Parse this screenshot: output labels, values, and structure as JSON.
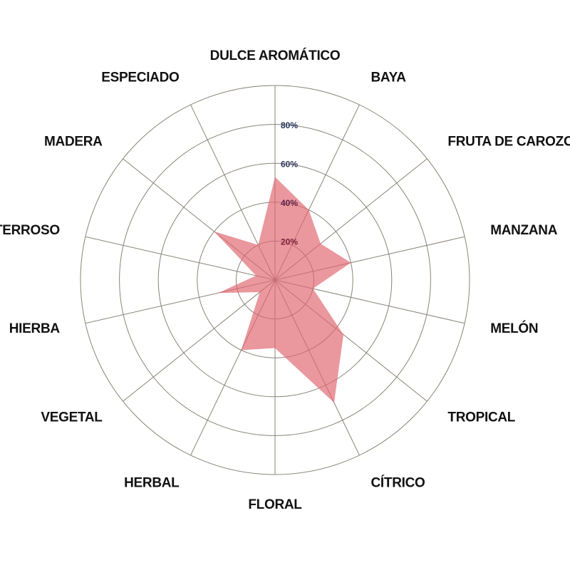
{
  "chart_data": {
    "type": "radar",
    "categories": [
      "DULCE AROMÁTICO",
      "BAYA",
      "FRUTA DE CAROZO",
      "MANZANA",
      "MELÓN",
      "TROPICAL",
      "CÍTRICO",
      "FLORAL",
      "HERBAL",
      "VEGETAL",
      "HIERBA",
      "TERROSO",
      "MADERA",
      "ESPECIADO"
    ],
    "series": [
      {
        "values": [
          53,
          40,
          30,
          40,
          20,
          45,
          70,
          35,
          40,
          10,
          30,
          10,
          40,
          20
        ],
        "color": "#e06670"
      }
    ],
    "rmax": 100,
    "rings": [
      20,
      40,
      60,
      80,
      100
    ],
    "tick_labels": [
      "20%",
      "40%",
      "60%",
      "80%"
    ],
    "tick_colors": [
      "#7a1f3d",
      "#5a2448",
      "#2c3558",
      "#1f2f55"
    ],
    "grid": true,
    "legend": "none"
  }
}
